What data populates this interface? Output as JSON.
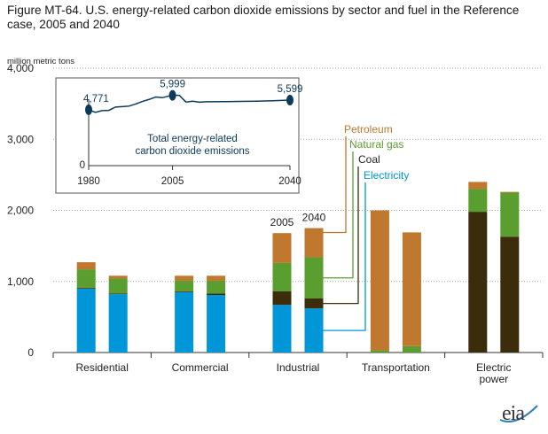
{
  "title": "Figure MT-64. U.S. energy-related carbon dioxide emissions by sector and fuel in the Reference case, 2005 and 2040",
  "logo_text": "eia",
  "chart_data": {
    "type": "bar",
    "stacked": true,
    "ylabel": "million metric tons",
    "ylim": [
      0,
      4000
    ],
    "yticks": [
      0,
      1000,
      2000,
      3000,
      4000
    ],
    "ytick_labels": [
      "0",
      "1,000",
      "2,000",
      "3,000",
      "4,000"
    ],
    "grid": true,
    "categories": [
      "Residential",
      "Commercial",
      "Industrial",
      "Transportation",
      "Electric power"
    ],
    "category_labels": [
      [
        "Residential"
      ],
      [
        "Commercial"
      ],
      [
        "Industrial"
      ],
      [
        "Transportation"
      ],
      [
        "Electric",
        "power"
      ]
    ],
    "years": [
      "2005",
      "2040"
    ],
    "year_label_category": "Industrial",
    "series": [
      {
        "name": "Electricity",
        "color": "#0096d7",
        "values": [
          [
            900,
            820
          ],
          [
            850,
            810
          ],
          [
            670,
            620
          ],
          [
            0,
            0
          ],
          [
            0,
            0
          ]
        ]
      },
      {
        "name": "Coal",
        "color": "#3b2c0c",
        "values": [
          [
            10,
            10
          ],
          [
            10,
            20
          ],
          [
            190,
            140
          ],
          [
            0,
            0
          ],
          [
            1980,
            1630
          ]
        ]
      },
      {
        "name": "Natural gas",
        "color": "#5a9e2f",
        "values": [
          [
            260,
            210
          ],
          [
            150,
            180
          ],
          [
            400,
            580
          ],
          [
            30,
            90
          ],
          [
            320,
            620
          ]
        ]
      },
      {
        "name": "Petroleum",
        "color": "#c0772e",
        "values": [
          [
            100,
            40
          ],
          [
            70,
            70
          ],
          [
            420,
            410
          ],
          [
            1970,
            1600
          ],
          [
            100,
            10
          ]
        ]
      }
    ],
    "legend_labels": {
      "petroleum": "Petroleum",
      "natural_gas": "Natural gas",
      "coal": "Coal",
      "electricity": "Electricity"
    },
    "inset": {
      "type": "line",
      "text_line1": "Total energy-related",
      "text_line2": "carbon dioxide emissions",
      "x_ticks": [
        "1980",
        "2005",
        "2040"
      ],
      "y_zero_label": "0",
      "marked_points": [
        {
          "year": 1980,
          "label": "4,771",
          "value": 4771
        },
        {
          "year": 2005,
          "label": "5,999",
          "value": 5999
        },
        {
          "year": 2040,
          "label": "5,599",
          "value": 5599
        }
      ],
      "line_points": [
        [
          1980,
          4771
        ],
        [
          1982,
          4550
        ],
        [
          1984,
          4700
        ],
        [
          1986,
          4720
        ],
        [
          1988,
          5000
        ],
        [
          1990,
          5040
        ],
        [
          1992,
          5080
        ],
        [
          1994,
          5260
        ],
        [
          1996,
          5480
        ],
        [
          1998,
          5650
        ],
        [
          2000,
          5860
        ],
        [
          2002,
          5800
        ],
        [
          2004,
          5950
        ],
        [
          2005,
          5999
        ],
        [
          2007,
          6000
        ],
        [
          2009,
          5430
        ],
        [
          2011,
          5500
        ],
        [
          2013,
          5420
        ],
        [
          2015,
          5450
        ],
        [
          2020,
          5460
        ],
        [
          2025,
          5480
        ],
        [
          2030,
          5500
        ],
        [
          2035,
          5540
        ],
        [
          2040,
          5599
        ]
      ],
      "color": "#0b3a5a"
    }
  }
}
